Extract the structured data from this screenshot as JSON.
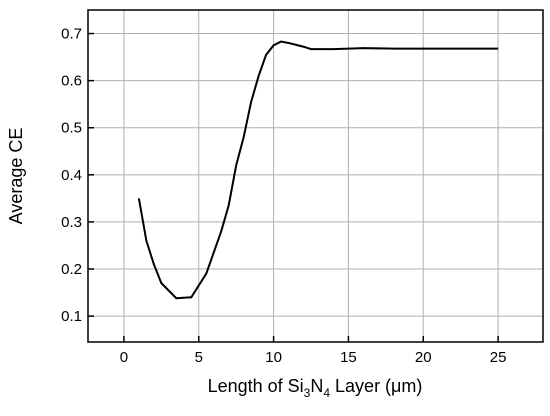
{
  "chart_data": {
    "type": "line",
    "y_label": "Average CE",
    "x_label_parts": [
      "Length of Si",
      "3",
      "N",
      "4",
      " Layer (μm)"
    ],
    "x": [
      1,
      1.5,
      2,
      2.5,
      3.5,
      4.5,
      5.5,
      6.5,
      7,
      7.5,
      8,
      8.5,
      9,
      9.5,
      10,
      10.5,
      11,
      12,
      12.5,
      14,
      16,
      18,
      25
    ],
    "series": [
      {
        "color": "#000000",
        "values": [
          0.35,
          0.26,
          0.21,
          0.17,
          0.138,
          0.14,
          0.19,
          0.28,
          0.335,
          0.42,
          0.48,
          0.555,
          0.61,
          0.655,
          0.675,
          0.683,
          0.68,
          0.672,
          0.667,
          0.667,
          0.669,
          0.668,
          0.668
        ]
      }
    ],
    "xlim": [
      -2.4,
      28
    ],
    "ylim": [
      0.045,
      0.75
    ],
    "xticks": [
      0,
      5,
      10,
      15,
      20,
      25
    ],
    "yticks": [
      0.1,
      0.2,
      0.3,
      0.4,
      0.5,
      0.6,
      0.7
    ],
    "grid": true
  }
}
